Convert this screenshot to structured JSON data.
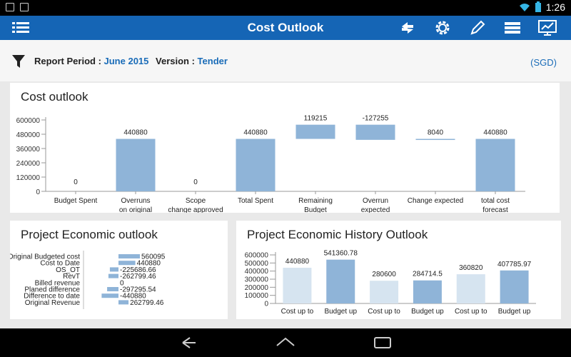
{
  "status_bar": {
    "time": "1:26"
  },
  "action_bar": {
    "title": "Cost Outlook"
  },
  "filter": {
    "report_period_label": "Report Period : ",
    "report_period_value": "June 2015",
    "version_label": "Version : ",
    "version_value": "Tender",
    "currency": "(SGD)"
  },
  "cost_outlook": {
    "title": "Cost outlook",
    "chart_data": {
      "type": "bar",
      "categories": [
        "Budget Spent",
        "Overruns on original",
        "Scope change approved",
        "Total Spent",
        "Remaining Budget",
        "Overrun expected",
        "Change expected",
        "total cost forecast"
      ],
      "values": [
        0,
        440880,
        0,
        440880,
        119215,
        -127255,
        8040,
        440880
      ],
      "data_labels": [
        "0",
        "440880",
        "0",
        "440880",
        "119215",
        "-127255",
        "8040",
        "440880"
      ],
      "ylim": [
        0,
        600000
      ],
      "yticks": [
        "600000",
        "480000",
        "360000",
        "240000",
        "120000",
        "0"
      ],
      "color": "#8fb4d8"
    }
  },
  "economic_outlook": {
    "title": "Project Economic outlook",
    "chart_data": {
      "type": "bar",
      "orientation": "horizontal",
      "categories": [
        "Original Budgeted cost",
        "Cost to Date",
        "OS_OT",
        "RevT",
        "Billed revenue",
        "Planed difference",
        "Difference to date",
        "Original Revenue"
      ],
      "values": [
        560095,
        440880,
        -225686.66,
        -262799.46,
        0,
        -297295.54,
        -440880,
        262799.46
      ],
      "data_labels": [
        "560095",
        "440880",
        "-225686.66",
        "-262799.46",
        "0",
        "-297295.54",
        "-440880",
        "262799.46"
      ],
      "color": "#8fb4d8"
    }
  },
  "history_outlook": {
    "title": "Project Economic History Outlook",
    "chart_data": {
      "type": "bar",
      "categories": [
        "Cost up to",
        "Budget up",
        "Cost up to",
        "Budget up",
        "Cost up to",
        "Budget up"
      ],
      "values": [
        440880,
        541360.78,
        280600,
        284714.5,
        360820,
        407785.97
      ],
      "data_labels": [
        "440880",
        "541360.78",
        "280600",
        "284714.5",
        "360820",
        "407785.97"
      ],
      "ylim": [
        0,
        600000
      ],
      "yticks": [
        "600000",
        "500000",
        "400000",
        "300000",
        "200000",
        "100000",
        "0"
      ],
      "colors": [
        "#d6e4f0",
        "#8fb4d8",
        "#d6e4f0",
        "#8fb4d8",
        "#d6e4f0",
        "#8fb4d8"
      ]
    }
  }
}
